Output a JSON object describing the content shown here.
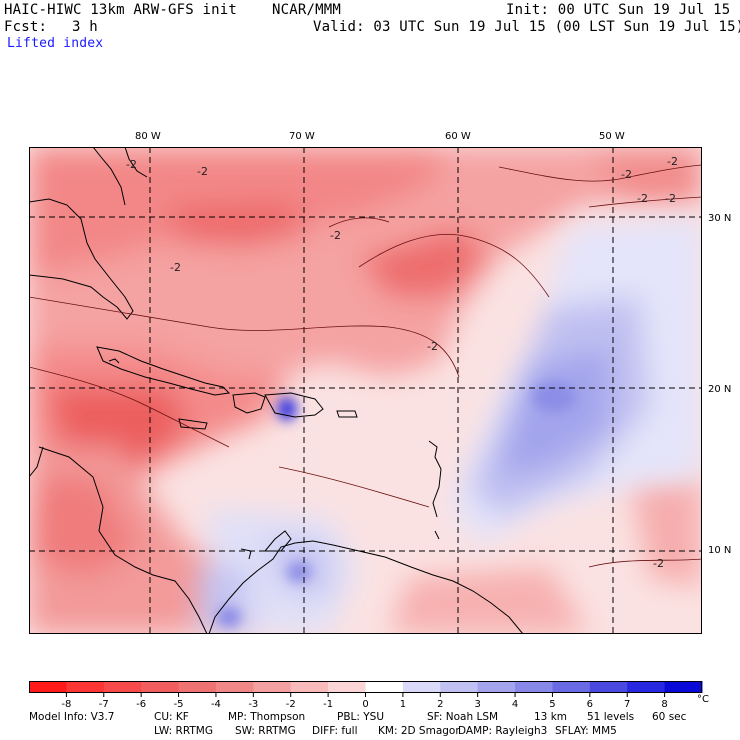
{
  "header": {
    "model_title": "HAIC-HIWC 13km ARW-GFS init",
    "org": "NCAR/MMM",
    "init": "Init: 00 UTC Sun 19 Jul 15",
    "fcst_label": "Fcst:",
    "fcst_value": "3 h",
    "valid": "Valid: 03 UTC Sun 19 Jul 15 (00 LST Sun 19 Jul 15)",
    "field": "Lifted index"
  },
  "map": {
    "lon_labels": [
      "80 W",
      "70 W",
      "60 W",
      "50 W"
    ],
    "lat_labels": [
      "30 N",
      "20 N",
      "10 N"
    ],
    "contour_label": "-2",
    "colors": {
      "ocean_neutral": "#fbe4e4",
      "coast": "#000000",
      "grid": "#000000"
    }
  },
  "colorbar": {
    "ticks": [
      "-8",
      "-7",
      "-6",
      "-5",
      "-4",
      "-3",
      "-2",
      "-1",
      "0",
      "1",
      "2",
      "3",
      "4",
      "5",
      "6",
      "7",
      "8"
    ],
    "unit": "°C",
    "colors": [
      "#ff1a1a",
      "#fc3535",
      "#f74a4a",
      "#f25e5e",
      "#ef7373",
      "#f08888",
      "#f4a0a0",
      "#f8baba",
      "#fcd6d6",
      "#ffffff",
      "#dadaf8",
      "#c0c0f2",
      "#a4a4ec",
      "#8888e8",
      "#6a6ae4",
      "#4a4ae0",
      "#2828e0",
      "#0a0ad8"
    ]
  },
  "model_info": {
    "line1": [
      {
        "key": "Model Info: V3.7"
      },
      {
        "key": "CU: KF"
      },
      {
        "key": "MP: Thompson"
      },
      {
        "key": "PBL: YSU"
      },
      {
        "key": "SF: Noah LSM"
      },
      {
        "key": "13 km"
      },
      {
        "key": "51 levels"
      },
      {
        "key": "60 sec"
      }
    ],
    "line2": [
      {
        "key": "LW: RRTMG"
      },
      {
        "key": "SW: RRTMG"
      },
      {
        "key": "DIFF: full"
      },
      {
        "key": "KM: 2D Smagor"
      },
      {
        "key": "DAMP: Rayleigh3"
      },
      {
        "key": "SFLAY: MM5"
      }
    ]
  }
}
